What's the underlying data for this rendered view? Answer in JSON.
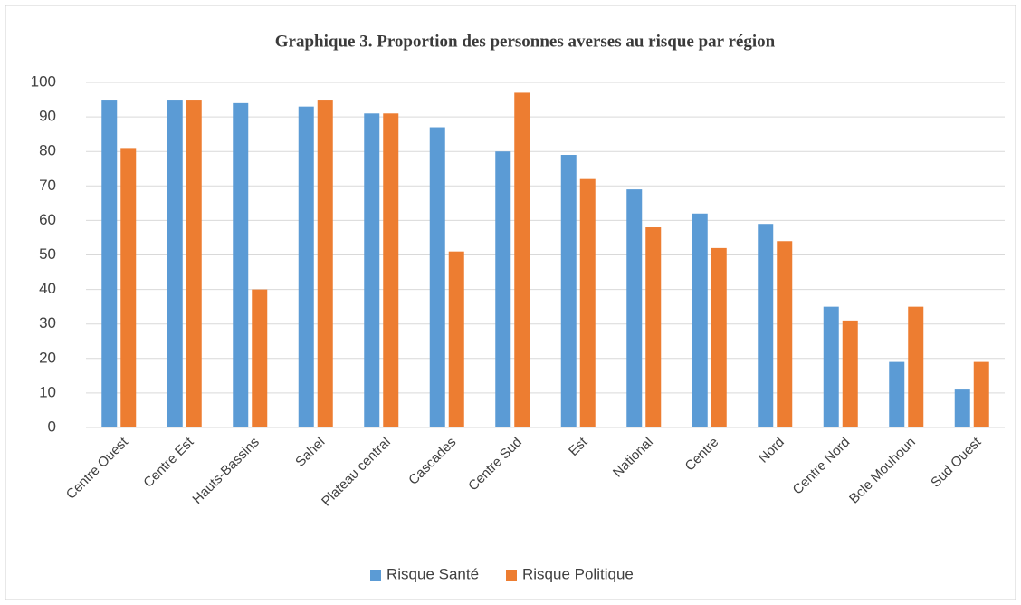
{
  "chart_data": {
    "type": "bar",
    "title": "Graphique 3. Proportion des personnes averses au risque par région",
    "categories": [
      "Centre Ouest",
      "Centre Est",
      "Hauts-Bassins",
      "Sahel",
      "Plateau central",
      "Cascades",
      "Centre Sud",
      "Est",
      "National",
      "Centre",
      "Nord",
      "Centre Nord",
      "Bcle Mouhoun",
      "Sud Ouest"
    ],
    "series": [
      {
        "name": "Risque Santé",
        "color": "#5b9bd5",
        "values": [
          95,
          95,
          94,
          93,
          91,
          87,
          80,
          79,
          69,
          62,
          59,
          35,
          19,
          11
        ]
      },
      {
        "name": "Risque Politique",
        "color": "#ed7d31",
        "values": [
          81,
          95,
          40,
          95,
          91,
          51,
          97,
          72,
          58,
          52,
          54,
          31,
          35,
          19
        ]
      }
    ],
    "ylim": [
      0,
      100
    ],
    "yticks": [
      0,
      10,
      20,
      30,
      40,
      50,
      60,
      70,
      80,
      90,
      100
    ],
    "grid": true,
    "legend": "bottom"
  }
}
